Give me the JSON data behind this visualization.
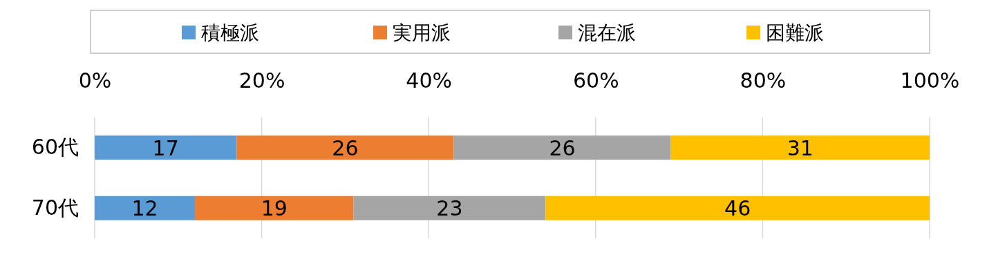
{
  "chart_data": {
    "type": "bar",
    "orientation": "horizontal",
    "stacked": true,
    "categories": [
      "60代",
      "70代"
    ],
    "series": [
      {
        "name": "積極派",
        "color": "#5b9bd5",
        "values": [
          17,
          12
        ]
      },
      {
        "name": "実用派",
        "color": "#ed7d31",
        "values": [
          26,
          19
        ]
      },
      {
        "name": "混在派",
        "color": "#a5a5a5",
        "values": [
          26,
          23
        ]
      },
      {
        "name": "困難派",
        "color": "#ffc000",
        "values": [
          31,
          46
        ]
      }
    ],
    "xlim": [
      0,
      100
    ],
    "xticks": [
      {
        "value": 0,
        "label": "0%"
      },
      {
        "value": 20,
        "label": "20%"
      },
      {
        "value": 40,
        "label": "40%"
      },
      {
        "value": 60,
        "label": "60%"
      },
      {
        "value": 80,
        "label": "80%"
      },
      {
        "value": 100,
        "label": "100%"
      }
    ],
    "grid": "x",
    "legend": "top",
    "data_labels": true
  }
}
